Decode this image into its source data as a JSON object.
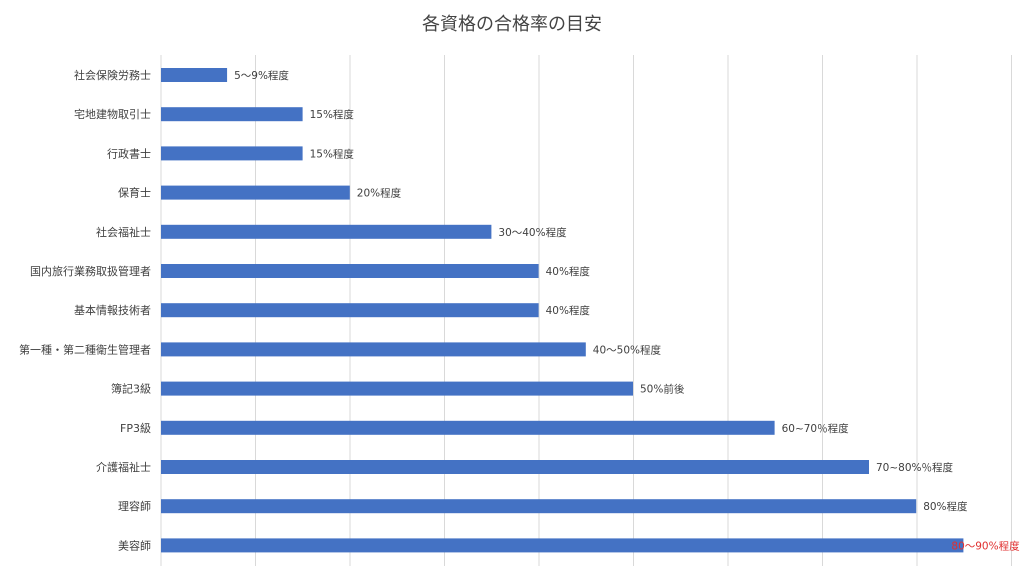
{
  "chart_data": {
    "type": "bar",
    "orientation": "horizontal",
    "title": "各資格の合格率の目安",
    "xlabel": "",
    "ylabel": "",
    "xlim": [
      0,
      90
    ],
    "grid": true,
    "legend": "none",
    "categories": [
      "社会保険労務士",
      "宅地建物取引士",
      "行政書士",
      "保育士",
      "社会福祉士",
      "国内旅行業務取扱管理者",
      "基本情報技術者",
      "第一種・第二種衛生管理者",
      "簿記3級",
      "FP3級",
      "介護福祉士",
      "理容師",
      "美容師"
    ],
    "values": [
      7,
      15,
      15,
      20,
      35,
      40,
      40,
      45,
      50,
      65,
      75,
      80,
      85
    ],
    "data_labels": [
      "5～9%程度",
      "15%程度",
      "15%程度",
      "20%程度",
      "30～40%程度",
      "40%程度",
      "40%程度",
      "40～50%程度",
      "50%前後",
      "60~70％程度",
      "70~80%％程度",
      "80%程度",
      "80～90%程度"
    ],
    "highlight_label_index": 12,
    "colors": {
      "bar": "#4472C4",
      "grid": "#D9D9D9",
      "label": "#404040",
      "highlight_label": "#E03030",
      "title": "#444444"
    }
  }
}
